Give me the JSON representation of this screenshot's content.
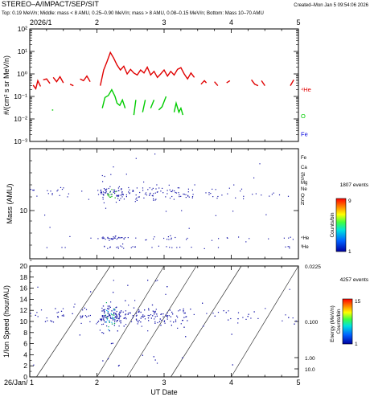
{
  "header": {
    "title": "STEREO–A/IMPACT/SEP/SIT",
    "created": "Created–Mon Jan  5 09:54:06 2026",
    "subtitle": "Top: 0.19 MeV/n; Middle: mass < 8 AMU, 0.25–0.90 MeV/n; mass > 8 AMU, 0.08–0.15 MeV/n; Bottom: Mass 10–70 AMU"
  },
  "colors": {
    "he": "#e00000",
    "o": "#00cc00",
    "fe": "#0000dd"
  },
  "chart_data": [
    {
      "type": "line",
      "top_x_label": "2026/1",
      "x_tick_labels": [
        "2",
        "3",
        "4",
        "5"
      ],
      "ylabel": "#/(cm² s sr MeV/n)",
      "y_scale": "log",
      "ylim": [
        0.001,
        100
      ],
      "y_tick_labels": [
        "10⁻³",
        "10⁻²",
        "10⁻¹",
        "10⁰",
        "10¹",
        "10²"
      ],
      "xlim": [
        1,
        5
      ],
      "series": [
        {
          "name": "4He",
          "color": "#e00000",
          "segments": [
            [
              [
                1.05,
                0.32
              ],
              [
                1.09,
                0.22
              ],
              [
                1.12,
                0.5
              ],
              [
                1.16,
                0.28
              ]
            ],
            [
              [
                1.2,
                0.55
              ],
              [
                1.25,
                0.6
              ],
              [
                1.3,
                0.38
              ]
            ],
            [
              [
                1.35,
                0.7
              ],
              [
                1.4,
                0.45
              ],
              [
                1.45,
                0.75
              ],
              [
                1.5,
                0.4
              ]
            ],
            [
              [
                1.6,
                0.35
              ],
              [
                1.65,
                0.3
              ]
            ],
            [
              [
                1.75,
                0.6
              ],
              [
                1.8,
                0.5
              ],
              [
                1.85,
                0.8
              ],
              [
                1.9,
                0.45
              ]
            ],
            [
              [
                2.05,
                0.3
              ],
              [
                2.1,
                1.5
              ],
              [
                2.15,
                3.5
              ],
              [
                2.2,
                9
              ],
              [
                2.25,
                5
              ],
              [
                2.3,
                2.5
              ],
              [
                2.35,
                1.5
              ],
              [
                2.4,
                2.2
              ],
              [
                2.45,
                1.0
              ],
              [
                2.5,
                1.6
              ],
              [
                2.55,
                1.1
              ],
              [
                2.6,
                0.9
              ],
              [
                2.65,
                1.5
              ],
              [
                2.7,
                1.1
              ],
              [
                2.75,
                2.0
              ],
              [
                2.8,
                0.9
              ],
              [
                2.85,
                1.3
              ],
              [
                2.9,
                0.7
              ],
              [
                2.95,
                1.0
              ],
              [
                3.0,
                1.5
              ],
              [
                3.05,
                0.8
              ],
              [
                3.1,
                1.3
              ],
              [
                3.15,
                0.9
              ],
              [
                3.2,
                1.6
              ],
              [
                3.25,
                1.9
              ],
              [
                3.3,
                1.0
              ],
              [
                3.35,
                0.6
              ],
              [
                3.4,
                1.1
              ],
              [
                3.45,
                0.7
              ]
            ],
            [
              [
                3.55,
                0.35
              ],
              [
                3.6,
                0.5
              ],
              [
                3.63,
                0.4
              ]
            ],
            [
              [
                3.75,
                0.45
              ],
              [
                3.8,
                0.3
              ]
            ],
            [
              [
                3.93,
                0.4
              ],
              [
                3.98,
                0.5
              ]
            ],
            [
              [
                4.3,
                0.55
              ],
              [
                4.35,
                0.35
              ],
              [
                4.4,
                0.3
              ]
            ],
            [
              [
                4.45,
                0.5
              ],
              [
                4.5,
                0.3
              ]
            ],
            [
              [
                4.88,
                0.3
              ],
              [
                4.93,
                0.55
              ]
            ]
          ]
        },
        {
          "name": "O",
          "color": "#00cc00",
          "segments": [
            [
              [
                1.33,
                0.025
              ],
              [
                1.35,
                0.025
              ]
            ],
            [
              [
                2.08,
                0.03
              ],
              [
                2.12,
                0.09
              ],
              [
                2.17,
                0.11
              ],
              [
                2.22,
                0.2
              ],
              [
                2.27,
                0.1
              ],
              [
                2.3,
                0.05
              ],
              [
                2.34,
                0.04
              ],
              [
                2.38,
                0.07
              ],
              [
                2.42,
                0.03
              ]
            ],
            [
              [
                2.55,
                0.015
              ],
              [
                2.58,
                0.07
              ]
            ],
            [
              [
                2.68,
                0.02
              ],
              [
                2.72,
                0.07
              ]
            ],
            [
              [
                2.8,
                0.03
              ],
              [
                2.85,
                0.07
              ]
            ],
            [
              [
                2.92,
                0.025
              ],
              [
                2.97,
                0.035
              ],
              [
                3.03,
                0.1
              ]
            ],
            [
              [
                3.15,
                0.02
              ],
              [
                3.18,
                0.05
              ],
              [
                3.22,
                0.02
              ],
              [
                3.25,
                0.03
              ],
              [
                3.28,
                0.015
              ]
            ]
          ]
        },
        {
          "name": "Fe",
          "color": "#0000dd",
          "segments": []
        }
      ],
      "labels": {
        "he": "⁴He",
        "o": "O",
        "fe": "Fe"
      }
    },
    {
      "type": "scatter",
      "ylabel": "Mass (AMU)",
      "y_tick_labels": [
        "10"
      ],
      "ion_labels": [
        "Fe",
        "Ca",
        "Si",
        "S",
        "Mg",
        "Ne",
        "O",
        "C",
        "N",
        "⁴He",
        "³He"
      ],
      "event_count": "1807 events",
      "colorbar": {
        "label": "Counts/bin",
        "max_label": "9",
        "min_label": "1"
      }
    },
    {
      "type": "scatter",
      "ylabel": "1/Ion Speed (hour/AU)",
      "ylim": [
        0,
        20
      ],
      "y_tick_labels": [
        "0",
        "2",
        "4",
        "6",
        "8",
        "10",
        "12",
        "14",
        "16",
        "18",
        "20"
      ],
      "right_tick_labels": [
        "0.0225",
        "0.100",
        "1.00",
        "10.0"
      ],
      "right_axis_label": "Energy (MeV/n)",
      "event_count": "4257 events",
      "colorbar": {
        "label": "Counts/bin",
        "max_label": "15",
        "min_label": "1"
      },
      "xlabel": "UT Date",
      "x_tick_labels": [
        "26/Jan/ 1",
        "2",
        "3",
        "4",
        "5"
      ]
    }
  ]
}
